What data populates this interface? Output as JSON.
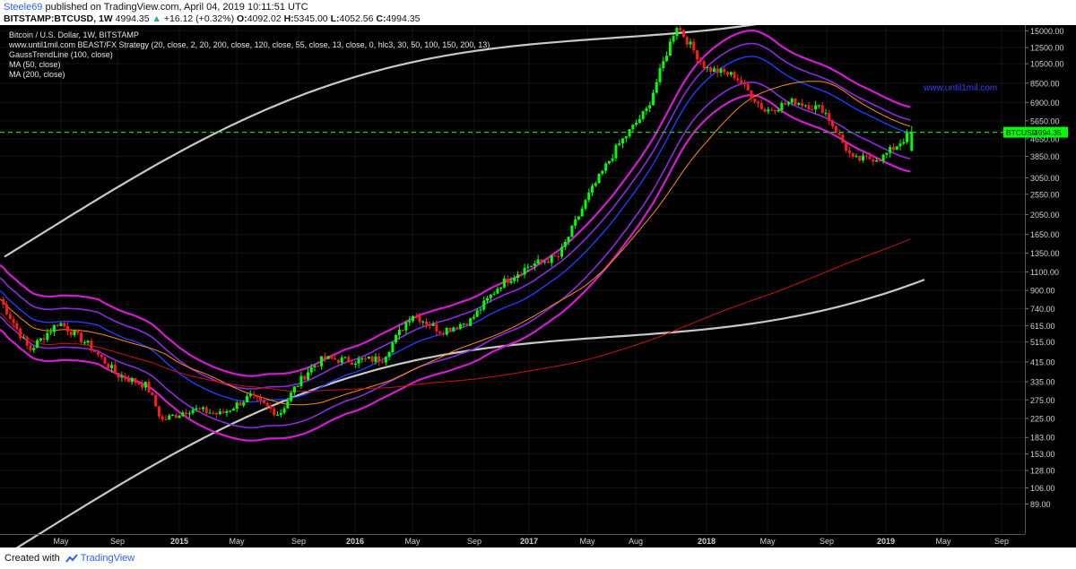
{
  "header": {
    "author": "Steele69",
    "published": "published on TradingView.com, April 04, 2019 10:11:51 UTC",
    "symbol": "BITSTAMP:BTCUSD, 1W",
    "price": "4994.35",
    "change": "+16.12 (+0.32%)",
    "ohlc": {
      "o_label": "O:",
      "o": "4092.02",
      "h_label": "H:",
      "h": "5345.00",
      "l_label": "L:",
      "l": "4052.56",
      "c_label": "C:",
      "c": "4994.35"
    }
  },
  "legend": {
    "title": "Bitcoin / U.S. Dollar, 1W, BITSTAMP",
    "line1": "www.until1mil.com BEAST/FX Strategy (20, close, 2, 20, 200, close, 120, close, 55, close, 13, close, 0, hlc3, 30, 50, 100, 150, 200, 13)",
    "line2": "GaussTrendLine (100, close)",
    "line3": "MA (50, close)",
    "line4": "MA (200, close)"
  },
  "watermark": "www.until1mil.com",
  "price_label": "BTCUSD",
  "price_value": "4994.35",
  "footer": {
    "created": "Created with",
    "brand": "TradingView"
  },
  "colors": {
    "up": "#00ff00",
    "down": "#ff1a1a",
    "band_outer": "#d41bd4",
    "band_mid": "#8a2be2",
    "band_blue": "#1f3cff",
    "gauss": "#c8c8c8",
    "ma50": "#ff8c00",
    "ma200": "#d01010",
    "price_line": "#00e000"
  },
  "chart_data": {
    "type": "candlestick",
    "title": "Bitcoin / U.S. Dollar, 1W, BITSTAMP",
    "y_scale": "log",
    "y_ticks": [
      "15000.00",
      "12500.00",
      "10500.00",
      "8500.00",
      "6900.00",
      "5650.00",
      "4650.00",
      "3850.00",
      "3050.00",
      "2550.00",
      "2050.00",
      "1650.00",
      "1350.00",
      "1100.00",
      "900.00",
      "740.00",
      "615.00",
      "515.00",
      "415.00",
      "335.00",
      "275.00",
      "225.00",
      "183.00",
      "153.00",
      "128.00",
      "106.00",
      "89.00"
    ],
    "x_ticks": [
      "May",
      "Sep",
      "2015",
      "May",
      "Sep",
      "2016",
      "May",
      "Sep",
      "2017",
      "May",
      "Aug",
      "2018",
      "May",
      "Sep",
      "2019",
      "May",
      "Sep"
    ],
    "x_range": [
      "2014-02",
      "2019-10"
    ],
    "last_price": 4994.35,
    "approx_close_path": [
      [
        "2014-02",
        820
      ],
      [
        "2014-04",
        470
      ],
      [
        "2014-06",
        640
      ],
      [
        "2014-08",
        500
      ],
      [
        "2014-10",
        360
      ],
      [
        "2014-12",
        320
      ],
      [
        "2015-01",
        220
      ],
      [
        "2015-03",
        250
      ],
      [
        "2015-05",
        235
      ],
      [
        "2015-07",
        285
      ],
      [
        "2015-09",
        235
      ],
      [
        "2015-10",
        310
      ],
      [
        "2015-11",
        380
      ],
      [
        "2015-12",
        430
      ],
      [
        "2016-02",
        420
      ],
      [
        "2016-04",
        430
      ],
      [
        "2016-06",
        700
      ],
      [
        "2016-08",
        580
      ],
      [
        "2016-10",
        650
      ],
      [
        "2016-12",
        960
      ],
      [
        "2017-02",
        1180
      ],
      [
        "2017-04",
        1300
      ],
      [
        "2017-06",
        2500
      ],
      [
        "2017-08",
        4300
      ],
      [
        "2017-10",
        6400
      ],
      [
        "2017-12",
        16000
      ],
      [
        "2018-02",
        10000
      ],
      [
        "2018-04",
        9200
      ],
      [
        "2018-06",
        6300
      ],
      [
        "2018-08",
        7000
      ],
      [
        "2018-10",
        6400
      ],
      [
        "2018-12",
        3700
      ],
      [
        "2019-02",
        3800
      ],
      [
        "2019-04",
        4994
      ]
    ]
  }
}
